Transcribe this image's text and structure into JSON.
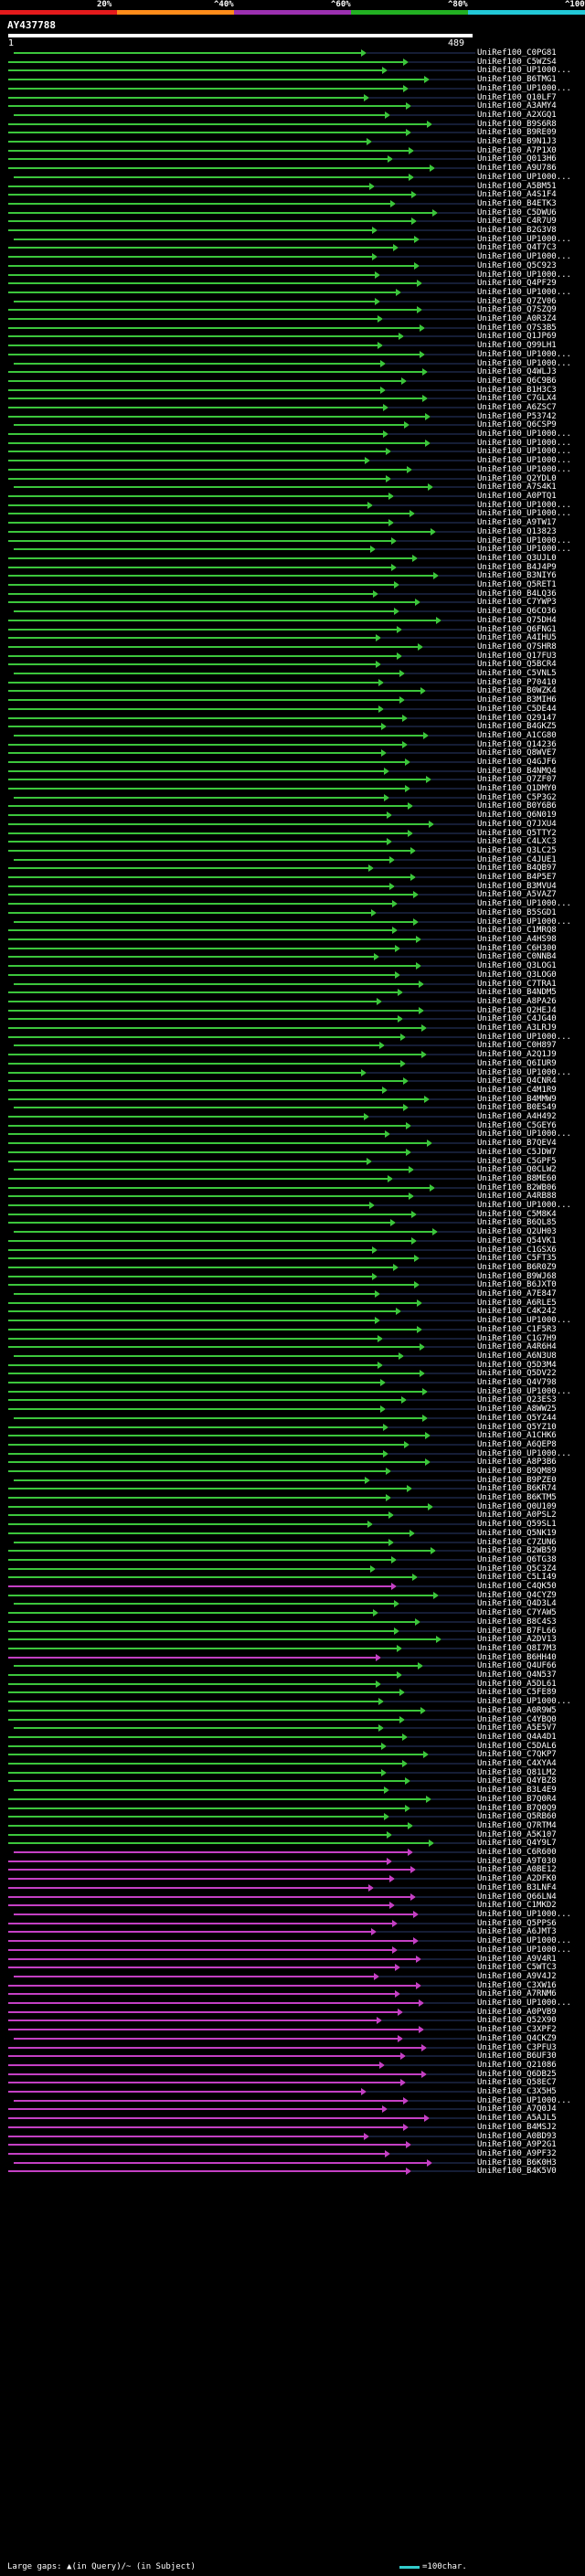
{
  "legend": {
    "segments": [
      {
        "label": "20%",
        "color": "#e41a1c"
      },
      {
        "label": "^40%",
        "color": "#ff8c1a"
      },
      {
        "label": "^60%",
        "color": "#9b30b0"
      },
      {
        "label": "^80%",
        "color": "#22b022"
      },
      {
        "label": "^100%",
        "color": "#22c8d8"
      }
    ]
  },
  "query": {
    "name": "AY437788",
    "start": "1",
    "end": "489"
  },
  "hits": [
    {
      "name": "UniRef100_C0PG81",
      "color": "#3cc63c"
    },
    {
      "name": "UniRef100_C5WZS4",
      "color": "#3cc63c"
    },
    {
      "name": "UniRef100_UP1000...",
      "color": "#3cc63c"
    },
    {
      "name": "UniRef100_B6TMG1",
      "color": "#3cc63c"
    },
    {
      "name": "UniRef100_UP1000...",
      "color": "#3cc63c"
    },
    {
      "name": "UniRef100_Q10LF7",
      "color": "#3cc63c"
    },
    {
      "name": "UniRef100_A3AMY4",
      "color": "#3cc63c"
    },
    {
      "name": "UniRef100_A2XGQ1",
      "color": "#3cc63c"
    },
    {
      "name": "UniRef100_B9S6R8",
      "color": "#3cc63c"
    },
    {
      "name": "UniRef100_B9RE09",
      "color": "#3cc63c"
    },
    {
      "name": "UniRef100_B9N1J3",
      "color": "#3cc63c"
    },
    {
      "name": "UniRef100_A7P1X0",
      "color": "#3cc63c"
    },
    {
      "name": "UniRef100_Q013H6",
      "color": "#3cc63c"
    },
    {
      "name": "UniRef100_A9U786",
      "color": "#3cc63c"
    },
    {
      "name": "UniRef100_UP1000...",
      "color": "#3cc63c"
    },
    {
      "name": "UniRef100_A5BM51",
      "color": "#3cc63c"
    },
    {
      "name": "UniRef100_A4S1F4",
      "color": "#3cc63c"
    },
    {
      "name": "UniRef100_B4ETK3",
      "color": "#3cc63c"
    },
    {
      "name": "UniRef100_C5DWU6",
      "color": "#3cc63c"
    },
    {
      "name": "UniRef100_C4R7U9",
      "color": "#3cc63c"
    },
    {
      "name": "UniRef100_B2G3V8",
      "color": "#3cc63c"
    },
    {
      "name": "UniRef100_UP1000...",
      "color": "#3cc63c"
    },
    {
      "name": "UniRef100_Q4T7C3",
      "color": "#3cc63c"
    },
    {
      "name": "UniRef100_UP1000...",
      "color": "#3cc63c"
    },
    {
      "name": "UniRef100_Q5C923",
      "color": "#3cc63c"
    },
    {
      "name": "UniRef100_UP1000...",
      "color": "#3cc63c"
    },
    {
      "name": "UniRef100_Q4PF29",
      "color": "#3cc63c"
    },
    {
      "name": "UniRef100_UP1000...",
      "color": "#3cc63c"
    },
    {
      "name": "UniRef100_Q7ZV06",
      "color": "#3cc63c"
    },
    {
      "name": "UniRef100_Q7SZQ9",
      "color": "#3cc63c"
    },
    {
      "name": "UniRef100_A0R3Z4",
      "color": "#3cc63c"
    },
    {
      "name": "UniRef100_Q7S3B5",
      "color": "#3cc63c"
    },
    {
      "name": "UniRef100_Q1JP69",
      "color": "#3cc63c"
    },
    {
      "name": "UniRef100_Q99LH1",
      "color": "#3cc63c"
    },
    {
      "name": "UniRef100_UP1000...",
      "color": "#3cc63c"
    },
    {
      "name": "UniRef100_UP1000...",
      "color": "#3cc63c"
    },
    {
      "name": "UniRef100_Q4WLJ3",
      "color": "#3cc63c"
    },
    {
      "name": "UniRef100_Q6C9B6",
      "color": "#3cc63c"
    },
    {
      "name": "UniRef100_B1H3C3",
      "color": "#3cc63c"
    },
    {
      "name": "UniRef100_C7GLX4",
      "color": "#3cc63c"
    },
    {
      "name": "UniRef100_A6ZSC7",
      "color": "#3cc63c"
    },
    {
      "name": "UniRef100_P53742",
      "color": "#3cc63c"
    },
    {
      "name": "UniRef100_Q6CSP9",
      "color": "#3cc63c"
    },
    {
      "name": "UniRef100_UP1000...",
      "color": "#3cc63c"
    },
    {
      "name": "UniRef100_UP1000...",
      "color": "#3cc63c"
    },
    {
      "name": "UniRef100_UP1000...",
      "color": "#3cc63c"
    },
    {
      "name": "UniRef100_UP1000...",
      "color": "#3cc63c"
    },
    {
      "name": "UniRef100_UP1000...",
      "color": "#3cc63c"
    },
    {
      "name": "UniRef100_Q2YDL0",
      "color": "#3cc63c"
    },
    {
      "name": "UniRef100_A7S4K1",
      "color": "#3cc63c"
    },
    {
      "name": "UniRef100_A0PTQ1",
      "color": "#3cc63c"
    },
    {
      "name": "UniRef100_UP1000...",
      "color": "#3cc63c"
    },
    {
      "name": "UniRef100_UP1000...",
      "color": "#3cc63c"
    },
    {
      "name": "UniRef100_A9TW17",
      "color": "#3cc63c"
    },
    {
      "name": "UniRef100_Q13823",
      "color": "#3cc63c"
    },
    {
      "name": "UniRef100_UP1000...",
      "color": "#3cc63c"
    },
    {
      "name": "UniRef100_UP1000...",
      "color": "#3cc63c"
    },
    {
      "name": "UniRef100_Q3UJL0",
      "color": "#3cc63c"
    },
    {
      "name": "UniRef100_B4J4P9",
      "color": "#3cc63c"
    },
    {
      "name": "UniRef100_B3NIY6",
      "color": "#3cc63c"
    },
    {
      "name": "UniRef100_Q5RET1",
      "color": "#3cc63c"
    },
    {
      "name": "UniRef100_B4LQ36",
      "color": "#3cc63c"
    },
    {
      "name": "UniRef100_C7YWP3",
      "color": "#3cc63c"
    },
    {
      "name": "UniRef100_Q6CO36",
      "color": "#3cc63c"
    },
    {
      "name": "UniRef100_Q75DH4",
      "color": "#3cc63c"
    },
    {
      "name": "UniRef100_Q6FNG1",
      "color": "#3cc63c"
    },
    {
      "name": "UniRef100_A4IHU5",
      "color": "#3cc63c"
    },
    {
      "name": "UniRef100_Q7SHR8",
      "color": "#3cc63c"
    },
    {
      "name": "UniRef100_Q17FU3",
      "color": "#3cc63c"
    },
    {
      "name": "UniRef100_Q5BCR4",
      "color": "#3cc63c"
    },
    {
      "name": "UniRef100_C5VNL5",
      "color": "#3cc63c"
    },
    {
      "name": "UniRef100_P70410",
      "color": "#3cc63c"
    },
    {
      "name": "UniRef100_B0WZK4",
      "color": "#3cc63c"
    },
    {
      "name": "UniRef100_B3MIH6",
      "color": "#3cc63c"
    },
    {
      "name": "UniRef100_C5DE44",
      "color": "#3cc63c"
    },
    {
      "name": "UniRef100_Q29147",
      "color": "#3cc63c"
    },
    {
      "name": "UniRef100_B4GKZ5",
      "color": "#3cc63c"
    },
    {
      "name": "UniRef100_A1CG80",
      "color": "#3cc63c"
    },
    {
      "name": "UniRef100_Q14236",
      "color": "#3cc63c"
    },
    {
      "name": "UniRef100_Q8WVE7",
      "color": "#3cc63c"
    },
    {
      "name": "UniRef100_Q4GJF6",
      "color": "#3cc63c"
    },
    {
      "name": "UniRef100_B4NMQ4",
      "color": "#3cc63c"
    },
    {
      "name": "UniRef100_Q7ZF07",
      "color": "#3cc63c"
    },
    {
      "name": "UniRef100_Q1DMY0",
      "color": "#3cc63c"
    },
    {
      "name": "UniRef100_C5P3G2",
      "color": "#3cc63c"
    },
    {
      "name": "UniRef100_B0Y6B6",
      "color": "#3cc63c"
    },
    {
      "name": "UniRef100_Q6N019",
      "color": "#3cc63c"
    },
    {
      "name": "UniRef100_Q7JXU4",
      "color": "#3cc63c"
    },
    {
      "name": "UniRef100_Q5TTY2",
      "color": "#3cc63c"
    },
    {
      "name": "UniRef100_C4LXC3",
      "color": "#3cc63c"
    },
    {
      "name": "UniRef100_Q3LC25",
      "color": "#3cc63c"
    },
    {
      "name": "UniRef100_C4JUE1",
      "color": "#3cc63c"
    },
    {
      "name": "UniRef100_B4QB97",
      "color": "#3cc63c"
    },
    {
      "name": "UniRef100_B4P5E7",
      "color": "#3cc63c"
    },
    {
      "name": "UniRef100_B3MVU4",
      "color": "#3cc63c"
    },
    {
      "name": "UniRef100_A5VAZ7",
      "color": "#3cc63c"
    },
    {
      "name": "UniRef100_UP1000...",
      "color": "#3cc63c"
    },
    {
      "name": "UniRef100_B5SGD1",
      "color": "#3cc63c"
    },
    {
      "name": "UniRef100_UP1000...",
      "color": "#3cc63c"
    },
    {
      "name": "UniRef100_C1MRQ8",
      "color": "#3cc63c"
    },
    {
      "name": "UniRef100_A4HS98",
      "color": "#3cc63c"
    },
    {
      "name": "UniRef100_C6H300",
      "color": "#3cc63c"
    },
    {
      "name": "UniRef100_C0NNB4",
      "color": "#3cc63c"
    },
    {
      "name": "UniRef100_Q3LOG1",
      "color": "#3cc63c"
    },
    {
      "name": "UniRef100_Q3LOG0",
      "color": "#3cc63c"
    },
    {
      "name": "UniRef100_C7TRA1",
      "color": "#3cc63c"
    },
    {
      "name": "UniRef100_B4NDM5",
      "color": "#3cc63c"
    },
    {
      "name": "UniRef100_A8PA26",
      "color": "#3cc63c"
    },
    {
      "name": "UniRef100_Q2HEJ4",
      "color": "#3cc63c"
    },
    {
      "name": "UniRef100_C4JG40",
      "color": "#3cc63c"
    },
    {
      "name": "UniRef100_A3LRJ9",
      "color": "#3cc63c"
    },
    {
      "name": "UniRef100_UP1000...",
      "color": "#3cc63c"
    },
    {
      "name": "UniRef100_C0H897",
      "color": "#3cc63c"
    },
    {
      "name": "UniRef100_A2Q1J9",
      "color": "#3cc63c"
    },
    {
      "name": "UniRef100_Q6IUR9",
      "color": "#3cc63c"
    },
    {
      "name": "UniRef100_UP1000...",
      "color": "#3cc63c"
    },
    {
      "name": "UniRef100_Q4CNR4",
      "color": "#3cc63c"
    },
    {
      "name": "UniRef100_C4M1R9",
      "color": "#3cc63c"
    },
    {
      "name": "UniRef100_B4MMW9",
      "color": "#3cc63c"
    },
    {
      "name": "UniRef100_B0ES49",
      "color": "#3cc63c"
    },
    {
      "name": "UniRef100_A4H492",
      "color": "#3cc63c"
    },
    {
      "name": "UniRef100_C5GEY6",
      "color": "#3cc63c"
    },
    {
      "name": "UniRef100_UP1000...",
      "color": "#3cc63c"
    },
    {
      "name": "UniRef100_B7QEV4",
      "color": "#3cc63c"
    },
    {
      "name": "UniRef100_C5JDW7",
      "color": "#3cc63c"
    },
    {
      "name": "UniRef100_C5GPF5",
      "color": "#3cc63c"
    },
    {
      "name": "UniRef100_Q0CLW2",
      "color": "#3cc63c"
    },
    {
      "name": "UniRef100_B8ME60",
      "color": "#3cc63c"
    },
    {
      "name": "UniRef100_B2WB06",
      "color": "#3cc63c"
    },
    {
      "name": "UniRef100_A4RB88",
      "color": "#3cc63c"
    },
    {
      "name": "UniRef100_UP1000...",
      "color": "#3cc63c"
    },
    {
      "name": "UniRef100_C5M8K4",
      "color": "#3cc63c"
    },
    {
      "name": "UniRef100_B6QL85",
      "color": "#3cc63c"
    },
    {
      "name": "UniRef100_Q2UH03",
      "color": "#3cc63c"
    },
    {
      "name": "UniRef100_Q54VK1",
      "color": "#3cc63c"
    },
    {
      "name": "UniRef100_C1GSX6",
      "color": "#3cc63c"
    },
    {
      "name": "UniRef100_C5FT35",
      "color": "#3cc63c"
    },
    {
      "name": "UniRef100_B6R0Z9",
      "color": "#3cc63c"
    },
    {
      "name": "UniRef100_B9WJ68",
      "color": "#3cc63c"
    },
    {
      "name": "UniRef100_B6JXT0",
      "color": "#3cc63c"
    },
    {
      "name": "UniRef100_A7E847",
      "color": "#3cc63c"
    },
    {
      "name": "UniRef100_A6RLE5",
      "color": "#3cc63c"
    },
    {
      "name": "UniRef100_C4K242",
      "color": "#3cc63c"
    },
    {
      "name": "UniRef100_UP1000...",
      "color": "#3cc63c"
    },
    {
      "name": "UniRef100_C1F5R3",
      "color": "#3cc63c"
    },
    {
      "name": "UniRef100_C1G7H9",
      "color": "#3cc63c"
    },
    {
      "name": "UniRef100_A4R6H4",
      "color": "#3cc63c"
    },
    {
      "name": "UniRef100_A6N3U8",
      "color": "#3cc63c"
    },
    {
      "name": "UniRef100_Q5D3M4",
      "color": "#3cc63c"
    },
    {
      "name": "UniRef100_Q5DV22",
      "color": "#3cc63c"
    },
    {
      "name": "UniRef100_Q4V798",
      "color": "#3cc63c"
    },
    {
      "name": "UniRef100_UP1000...",
      "color": "#3cc63c"
    },
    {
      "name": "UniRef100_Q23ES3",
      "color": "#3cc63c"
    },
    {
      "name": "UniRef100_A8WW25",
      "color": "#3cc63c"
    },
    {
      "name": "UniRef100_Q5YZ44",
      "color": "#3cc63c"
    },
    {
      "name": "UniRef100_Q5YZ10",
      "color": "#3cc63c"
    },
    {
      "name": "UniRef100_A1CHK6",
      "color": "#3cc63c"
    },
    {
      "name": "UniRef100_A6QEP8",
      "color": "#3cc63c"
    },
    {
      "name": "UniRef100_UP1000...",
      "color": "#3cc63c"
    },
    {
      "name": "UniRef100_A8P3B6",
      "color": "#3cc63c"
    },
    {
      "name": "UniRef100_B9QM89",
      "color": "#3cc63c"
    },
    {
      "name": "UniRef100_B9PZE0",
      "color": "#3cc63c"
    },
    {
      "name": "UniRef100_B6KR74",
      "color": "#3cc63c"
    },
    {
      "name": "UniRef100_B6KTM5",
      "color": "#3cc63c"
    },
    {
      "name": "UniRef100_Q0U109",
      "color": "#3cc63c"
    },
    {
      "name": "UniRef100_A0PSL2",
      "color": "#3cc63c"
    },
    {
      "name": "UniRef100_Q59SL1",
      "color": "#3cc63c"
    },
    {
      "name": "UniRef100_Q5NK19",
      "color": "#3cc63c"
    },
    {
      "name": "UniRef100_C7ZUN6",
      "color": "#3cc63c"
    },
    {
      "name": "UniRef100_B2WB59",
      "color": "#3cc63c"
    },
    {
      "name": "UniRef100_Q6TG38",
      "color": "#3cc63c"
    },
    {
      "name": "UniRef100_Q5C3Z4",
      "color": "#3cc63c"
    },
    {
      "name": "UniRef100_C5LI49",
      "color": "#3cc63c"
    },
    {
      "name": "UniRef100_C4QK50",
      "color": "#c440c4"
    },
    {
      "name": "UniRef100_Q4CYZ9",
      "color": "#3cc63c"
    },
    {
      "name": "UniRef100_Q4D3L4",
      "color": "#3cc63c"
    },
    {
      "name": "UniRef100_C7YAW5",
      "color": "#3cc63c"
    },
    {
      "name": "UniRef100_B8C4S3",
      "color": "#3cc63c"
    },
    {
      "name": "UniRef100_B7FL66",
      "color": "#3cc63c"
    },
    {
      "name": "UniRef100_A2DV13",
      "color": "#3cc63c"
    },
    {
      "name": "UniRef100_Q8I7M3",
      "color": "#3cc63c"
    },
    {
      "name": "UniRef100_B6HH40",
      "color": "#c440c4"
    },
    {
      "name": "UniRef100_Q4UF66",
      "color": "#3cc63c"
    },
    {
      "name": "UniRef100_Q4N537",
      "color": "#3cc63c"
    },
    {
      "name": "UniRef100_A5DL61",
      "color": "#3cc63c"
    },
    {
      "name": "UniRef100_C5FE89",
      "color": "#3cc63c"
    },
    {
      "name": "UniRef100_UP1000...",
      "color": "#3cc63c"
    },
    {
      "name": "UniRef100_A0R9W5",
      "color": "#3cc63c"
    },
    {
      "name": "UniRef100_C4YBQ0",
      "color": "#3cc63c"
    },
    {
      "name": "UniRef100_A5E5V7",
      "color": "#3cc63c"
    },
    {
      "name": "UniRef100_Q4A4D1",
      "color": "#3cc63c"
    },
    {
      "name": "UniRef100_C5DAL6",
      "color": "#3cc63c"
    },
    {
      "name": "UniRef100_C7QKP7",
      "color": "#3cc63c"
    },
    {
      "name": "UniRef100_C4XYA4",
      "color": "#3cc63c"
    },
    {
      "name": "UniRef100_Q81LM2",
      "color": "#3cc63c"
    },
    {
      "name": "UniRef100_Q4YBZ8",
      "color": "#3cc63c"
    },
    {
      "name": "UniRef100_B3L4E9",
      "color": "#3cc63c"
    },
    {
      "name": "UniRef100_B7Q0R4",
      "color": "#3cc63c"
    },
    {
      "name": "UniRef100_B7Q0Q9",
      "color": "#3cc63c"
    },
    {
      "name": "UniRef100_Q5RB60",
      "color": "#3cc63c"
    },
    {
      "name": "UniRef100_Q7RTM4",
      "color": "#3cc63c"
    },
    {
      "name": "UniRef100_A5K107",
      "color": "#3cc63c"
    },
    {
      "name": "UniRef100_Q4Y9L7",
      "color": "#3cc63c"
    },
    {
      "name": "UniRef100_C6R600",
      "color": "#c440c4"
    },
    {
      "name": "UniRef100_A9T030",
      "color": "#c440c4"
    },
    {
      "name": "UniRef100_A0BE12",
      "color": "#c440c4"
    },
    {
      "name": "UniRef100_A2DFK0",
      "color": "#c440c4"
    },
    {
      "name": "UniRef100_B3LNF4",
      "color": "#c440c4"
    },
    {
      "name": "UniRef100_Q66LN4",
      "color": "#c440c4"
    },
    {
      "name": "UniRef100_C1MKD2",
      "color": "#c440c4"
    },
    {
      "name": "UniRef100_UP1000...",
      "color": "#c440c4"
    },
    {
      "name": "UniRef100_Q5PPS6",
      "color": "#c440c4"
    },
    {
      "name": "UniRef100_A6JMT3",
      "color": "#c440c4"
    },
    {
      "name": "UniRef100_UP1000...",
      "color": "#c440c4"
    },
    {
      "name": "UniRef100_UP1000...",
      "color": "#c440c4"
    },
    {
      "name": "UniRef100_A9V4R1",
      "color": "#c440c4"
    },
    {
      "name": "UniRef100_C5WTC3",
      "color": "#c440c4"
    },
    {
      "name": "UniRef100_A9V4J2",
      "color": "#c440c4"
    },
    {
      "name": "UniRef100_C3XW16",
      "color": "#c440c4"
    },
    {
      "name": "UniRef100_A7RNM6",
      "color": "#c440c4"
    },
    {
      "name": "UniRef100_UP1000...",
      "color": "#c440c4"
    },
    {
      "name": "UniRef100_A0PVB9",
      "color": "#c440c4"
    },
    {
      "name": "UniRef100_Q52X90",
      "color": "#c440c4"
    },
    {
      "name": "UniRef100_C3XPF2",
      "color": "#c440c4"
    },
    {
      "name": "UniRef100_Q4CKZ9",
      "color": "#c440c4"
    },
    {
      "name": "UniRef100_C3PFU3",
      "color": "#c440c4"
    },
    {
      "name": "UniRef100_B6UF30",
      "color": "#c440c4"
    },
    {
      "name": "UniRef100_Q21086",
      "color": "#c440c4"
    },
    {
      "name": "UniRef100_Q6DB25",
      "color": "#c440c4"
    },
    {
      "name": "UniRef100_Q58EC7",
      "color": "#c440c4"
    },
    {
      "name": "UniRef100_C3X5H5",
      "color": "#c440c4"
    },
    {
      "name": "UniRef100_UP1000...",
      "color": "#c440c4"
    },
    {
      "name": "UniRef100_A7Q0J4",
      "color": "#c440c4"
    },
    {
      "name": "UniRef100_A5AJL5",
      "color": "#c440c4"
    },
    {
      "name": "UniRef100_B4MSJ2",
      "color": "#c440c4"
    },
    {
      "name": "UniRef100_A0BD93",
      "color": "#c440c4"
    },
    {
      "name": "UniRef100_A9P2G1",
      "color": "#c440c4"
    },
    {
      "name": "UniRef100_A9PF32",
      "color": "#c440c4"
    },
    {
      "name": "UniRef100_B6K0H3",
      "color": "#c440c4"
    },
    {
      "name": "UniRef100_B4K5V0",
      "color": "#c440c4"
    }
  ],
  "footer": {
    "gap_note": "Large gaps: ▲(in Query)/~ (in Subject)",
    "scale_label": "=100char."
  }
}
